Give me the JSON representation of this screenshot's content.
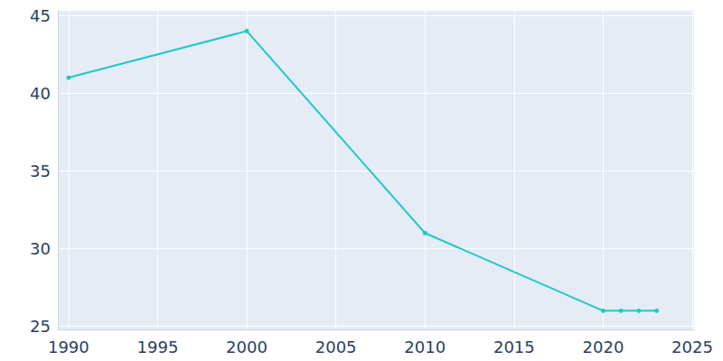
{
  "chart_data": {
    "type": "line",
    "x": [
      1990,
      2000,
      2010,
      2020,
      2021,
      2022,
      2023
    ],
    "values": [
      41,
      44,
      31,
      26,
      26,
      26,
      26
    ],
    "color": "#1ec8c8",
    "marker": "circle",
    "xlim": [
      1989.4,
      2025.1
    ],
    "xticks": [
      1990,
      1995,
      2000,
      2005,
      2010,
      2015,
      2020,
      2025
    ],
    "ylim": [
      24.8,
      45.3
    ],
    "yticks": [
      25,
      30,
      35,
      40,
      45
    ],
    "grid": true
  }
}
